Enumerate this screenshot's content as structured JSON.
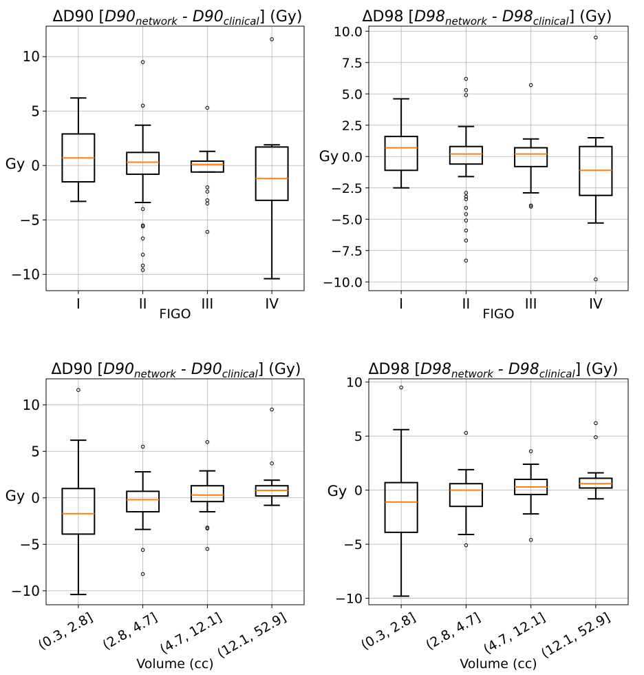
{
  "chart_data": [
    {
      "type": "box",
      "title_parts": [
        "ΔD90 [",
        "D90",
        "network",
        " - ",
        "D90",
        "clinical",
        "] (Gy)"
      ],
      "xlabel": "FIGO",
      "ylabel": "Gy",
      "ylim": [
        -11.5,
        12.8
      ],
      "yticks": [
        -10,
        -5,
        0,
        5,
        10
      ],
      "ytick_labels": [
        "−10",
        "−5",
        "0",
        "5",
        "10"
      ],
      "categories": [
        "I",
        "II",
        "III",
        "IV"
      ],
      "rotate_xticks": false,
      "grid": true,
      "boxes": [
        {
          "whislo": -3.3,
          "q1": -1.5,
          "med": 0.7,
          "q3": 2.9,
          "whishi": 6.2,
          "fliers": []
        },
        {
          "whislo": -3.4,
          "q1": -0.8,
          "med": 0.3,
          "q3": 1.2,
          "whishi": 3.7,
          "fliers": [
            9.5,
            5.5,
            -4.0,
            -5.5,
            -5.6,
            -6.7,
            -8.2,
            -9.2,
            -9.6
          ]
        },
        {
          "whislo": -0.6,
          "q1": -0.6,
          "med": 0.1,
          "q3": 0.4,
          "whishi": 1.3,
          "fliers": [
            5.3,
            -2.0,
            -2.4,
            -3.2,
            -3.5,
            -6.1
          ]
        },
        {
          "whislo": -10.4,
          "q1": -3.2,
          "med": -1.2,
          "q3": 1.7,
          "whishi": 1.9,
          "fliers": [
            11.6
          ]
        }
      ]
    },
    {
      "type": "box",
      "title_parts": [
        "ΔD98 [",
        "D98",
        "network",
        " - ",
        "D98",
        "clinical",
        "] (Gy)"
      ],
      "xlabel": "FIGO",
      "ylabel": "Gy",
      "ylim": [
        -10.7,
        10.4
      ],
      "yticks": [
        -10,
        -7.5,
        -5,
        -2.5,
        0,
        2.5,
        5,
        7.5,
        10
      ],
      "ytick_labels": [
        "−10.0",
        "−7.5",
        "−5.0",
        "−2.5",
        "0.0",
        "2.5",
        "5.0",
        "7.5",
        "10.0"
      ],
      "categories": [
        "I",
        "II",
        "III",
        "IV"
      ],
      "rotate_xticks": false,
      "grid": true,
      "boxes": [
        {
          "whislo": -2.5,
          "q1": -1.1,
          "med": 0.7,
          "q3": 1.6,
          "whishi": 4.6,
          "fliers": []
        },
        {
          "whislo": -1.6,
          "q1": -0.6,
          "med": 0.2,
          "q3": 0.8,
          "whishi": 2.4,
          "fliers": [
            6.2,
            5.3,
            4.9,
            -2.9,
            -3.2,
            -3.4,
            -4.1,
            -4.6,
            -5.1,
            -5.9,
            -6.7,
            -8.3
          ]
        },
        {
          "whislo": -2.9,
          "q1": -0.8,
          "med": 0.2,
          "q3": 0.7,
          "whishi": 1.4,
          "fliers": [
            5.7,
            -3.9,
            -4.0
          ]
        },
        {
          "whislo": -5.3,
          "q1": -3.1,
          "med": -1.1,
          "q3": 0.8,
          "whishi": 1.5,
          "fliers": [
            9.5,
            -9.8
          ]
        }
      ]
    },
    {
      "type": "box",
      "title_parts": [
        "ΔD90 [",
        "D90",
        "network",
        " - ",
        "D90",
        "clinical",
        "] (Gy)"
      ],
      "xlabel": "Volume (cc)",
      "ylabel": "Gy",
      "ylim": [
        -11.5,
        12.8
      ],
      "yticks": [
        -10,
        -5,
        0,
        5,
        10
      ],
      "ytick_labels": [
        "−10",
        "−5",
        "0",
        "5",
        "10"
      ],
      "categories": [
        "(0.3, 2.8]",
        "(2.8, 4.7]",
        "(4.7, 12.1]",
        "(12.1, 52.9]"
      ],
      "rotate_xticks": true,
      "grid": true,
      "boxes": [
        {
          "whislo": -10.4,
          "q1": -3.9,
          "med": -1.7,
          "q3": 1.0,
          "whishi": 6.2,
          "fliers": [
            11.6
          ]
        },
        {
          "whislo": -3.4,
          "q1": -1.5,
          "med": -0.2,
          "q3": 0.7,
          "whishi": 2.8,
          "fliers": [
            5.5,
            -5.6,
            -8.2
          ]
        },
        {
          "whislo": -1.5,
          "q1": -0.4,
          "med": 0.3,
          "q3": 1.3,
          "whishi": 2.9,
          "fliers": [
            6.0,
            -3.2,
            -3.3,
            -5.5
          ]
        },
        {
          "whislo": -0.8,
          "q1": 0.2,
          "med": 0.8,
          "q3": 1.3,
          "whishi": 1.9,
          "fliers": [
            9.5,
            3.7
          ]
        }
      ]
    },
    {
      "type": "box",
      "title_parts": [
        "ΔD98 [",
        "D98",
        "network",
        " - ",
        "D98",
        "clinical",
        "] (Gy)"
      ],
      "xlabel": "Volume (cc)",
      "ylabel": "Gy",
      "ylim": [
        -10.6,
        10.3
      ],
      "yticks": [
        -10,
        -5,
        0,
        5,
        10
      ],
      "ytick_labels": [
        "−10",
        "−5",
        "0",
        "5",
        "10"
      ],
      "categories": [
        "(0.3, 2.8]",
        "(2.8, 4.7]",
        "(4.7, 12.1]",
        "(12.1, 52.9]"
      ],
      "rotate_xticks": true,
      "grid": true,
      "boxes": [
        {
          "whislo": -9.8,
          "q1": -3.9,
          "med": -1.1,
          "q3": 0.7,
          "whishi": 5.6,
          "fliers": [
            9.5
          ]
        },
        {
          "whislo": -4.1,
          "q1": -1.5,
          "med": 0.0,
          "q3": 0.6,
          "whishi": 1.9,
          "fliers": [
            5.3,
            -5.1
          ]
        },
        {
          "whislo": -2.2,
          "q1": -0.4,
          "med": 0.3,
          "q3": 1.0,
          "whishi": 2.4,
          "fliers": [
            3.6,
            -4.6
          ]
        },
        {
          "whislo": -0.8,
          "q1": 0.2,
          "med": 0.6,
          "q3": 1.1,
          "whishi": 1.6,
          "fliers": [
            6.2,
            4.9
          ]
        }
      ]
    }
  ],
  "colors": {
    "box": "#000000",
    "median": "#ff7f0e",
    "grid": "#b0b0b0"
  }
}
